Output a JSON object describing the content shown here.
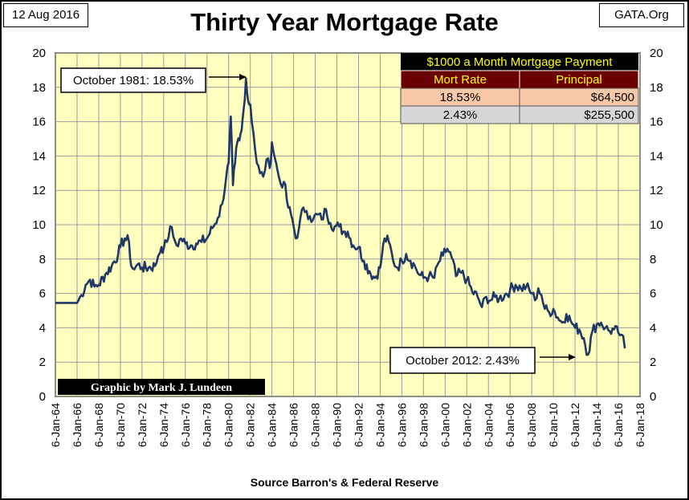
{
  "header": {
    "date": "12 Aug 2016",
    "title": "Thirty Year Mortgage Rate",
    "site": "GATA.Org"
  },
  "source": "Source Barron's & Federal Reserve",
  "credit": "Graphic by Mark J. Lundeen",
  "table": {
    "title": "$1000 a Month Mortgage Payment",
    "headers": [
      "Mort Rate",
      "Principal"
    ],
    "rows": [
      [
        "18.53%",
        "$64,500"
      ],
      [
        "2.43%",
        "$255,500"
      ]
    ]
  },
  "annotations": {
    "peak": "October 1981: 18.53%",
    "low": "October 2012: 2.43%"
  },
  "colors": {
    "plot_bg": "#ffffc0",
    "line": "#1f3864",
    "grid": "#9b9b9b",
    "table_title_bg": "#000000",
    "table_title_fg": "#ffff00",
    "table_header_bg": "#6b0000",
    "table_row1_bg": "#f9c8a8",
    "table_row2_bg": "#d6d6d6"
  },
  "chart_data": {
    "type": "line",
    "title": "Thirty Year Mortgage Rate",
    "xlabel": "",
    "ylabel": "",
    "ylim": [
      0,
      20
    ],
    "y_ticks": [
      0,
      2,
      4,
      6,
      8,
      10,
      12,
      14,
      16,
      18,
      20
    ],
    "x_range": [
      1964,
      2018
    ],
    "x_tick_labels": [
      "6-Jan-64",
      "6-Jan-66",
      "6-Jan-68",
      "6-Jan-70",
      "6-Jan-72",
      "6-Jan-74",
      "6-Jan-76",
      "6-Jan-78",
      "6-Jan-80",
      "6-Jan-82",
      "6-Jan-84",
      "6-Jan-86",
      "6-Jan-88",
      "6-Jan-90",
      "6-Jan-92",
      "6-Jan-94",
      "6-Jan-96",
      "6-Jan-98",
      "6-Jan-00",
      "6-Jan-02",
      "6-Jan-04",
      "6-Jan-06",
      "6-Jan-08",
      "6-Jan-10",
      "6-Jan-12",
      "6-Jan-14",
      "6-Jan-16",
      "6-Jan-18"
    ],
    "grid": true,
    "series": [
      {
        "x": [
          1964.0,
          1966.0,
          1966.4,
          1966.8,
          1967.2,
          1967.6,
          1968.0,
          1968.6,
          1969.2,
          1969.8,
          1970.0,
          1970.4,
          1970.8,
          1971.0,
          1971.3,
          1971.6,
          1972.0,
          1972.6,
          1973.2,
          1973.5,
          1973.8,
          1974.0,
          1974.3,
          1974.6,
          1974.9,
          1975.2,
          1975.6,
          1976.0,
          1976.5,
          1977.0,
          1977.5,
          1978.0,
          1978.5,
          1979.0,
          1979.4,
          1979.8,
          1980.0,
          1980.2,
          1980.4,
          1980.6,
          1980.8,
          1981.0,
          1981.2,
          1981.4,
          1981.6,
          1981.8,
          1982.0,
          1982.3,
          1982.6,
          1982.9,
          1983.2,
          1983.5,
          1983.8,
          1984.0,
          1984.3,
          1984.5,
          1984.8,
          1985.1,
          1985.5,
          1985.9,
          1986.2,
          1986.5,
          1986.9,
          1987.2,
          1987.5,
          1987.8,
          1988.2,
          1988.6,
          1989.0,
          1989.4,
          1989.8,
          1990.2,
          1990.6,
          1991.0,
          1991.5,
          1992.0,
          1992.5,
          1993.0,
          1993.5,
          1994.0,
          1994.4,
          1994.8,
          1995.2,
          1995.6,
          1996.0,
          1996.4,
          1996.8,
          1997.2,
          1997.6,
          1998.0,
          1998.5,
          1999.0,
          1999.4,
          1999.8,
          2000.2,
          2000.6,
          2001.0,
          2001.5,
          2002.0,
          2002.5,
          2003.0,
          2003.4,
          2003.8,
          2004.2,
          2004.6,
          2005.0,
          2005.5,
          2006.0,
          2006.5,
          2007.0,
          2007.5,
          2008.0,
          2008.3,
          2008.6,
          2008.9,
          2009.2,
          2009.6,
          2010.0,
          2010.4,
          2010.8,
          2011.2,
          2011.6,
          2012.0,
          2012.4,
          2012.8,
          2013.2,
          2013.6,
          2014.0,
          2014.4,
          2014.8,
          2015.2,
          2015.6,
          2016.0,
          2016.3,
          2016.6
        ],
        "y": [
          5.45,
          5.45,
          5.9,
          6.5,
          6.8,
          6.4,
          6.5,
          7.1,
          7.6,
          8.3,
          8.7,
          9.2,
          9.0,
          7.6,
          7.4,
          7.7,
          7.5,
          7.5,
          7.6,
          8.2,
          8.7,
          8.6,
          9.0,
          9.9,
          9.3,
          8.8,
          9.2,
          8.9,
          8.8,
          8.9,
          9.0,
          9.2,
          9.8,
          10.4,
          11.2,
          12.9,
          13.6,
          16.3,
          12.3,
          13.6,
          14.8,
          14.9,
          15.5,
          16.8,
          18.53,
          17.2,
          17.0,
          15.3,
          13.6,
          13.0,
          12.8,
          13.8,
          13.3,
          14.8,
          13.8,
          13.2,
          12.4,
          12.5,
          11.0,
          10.3,
          9.2,
          9.8,
          11.0,
          10.8,
          10.5,
          10.3,
          10.6,
          10.3,
          10.9,
          10.1,
          9.9,
          9.9,
          9.6,
          9.6,
          8.8,
          8.7,
          7.9,
          7.3,
          6.9,
          7.5,
          9.2,
          9.0,
          7.9,
          7.5,
          7.9,
          8.3,
          7.9,
          7.6,
          7.1,
          6.9,
          7.0,
          6.9,
          7.8,
          8.2,
          8.6,
          8.1,
          7.0,
          7.2,
          6.8,
          6.1,
          5.8,
          5.2,
          5.8,
          5.6,
          5.8,
          5.7,
          5.9,
          6.2,
          6.5,
          6.3,
          6.4,
          6.0,
          5.6,
          6.3,
          5.9,
          5.1,
          4.9,
          5.1,
          4.6,
          4.3,
          4.8,
          4.4,
          4.0,
          3.9,
          3.4,
          2.43,
          3.8,
          4.2,
          4.3,
          4.0,
          3.8,
          3.9,
          3.7,
          3.6,
          2.8
        ]
      }
    ]
  }
}
